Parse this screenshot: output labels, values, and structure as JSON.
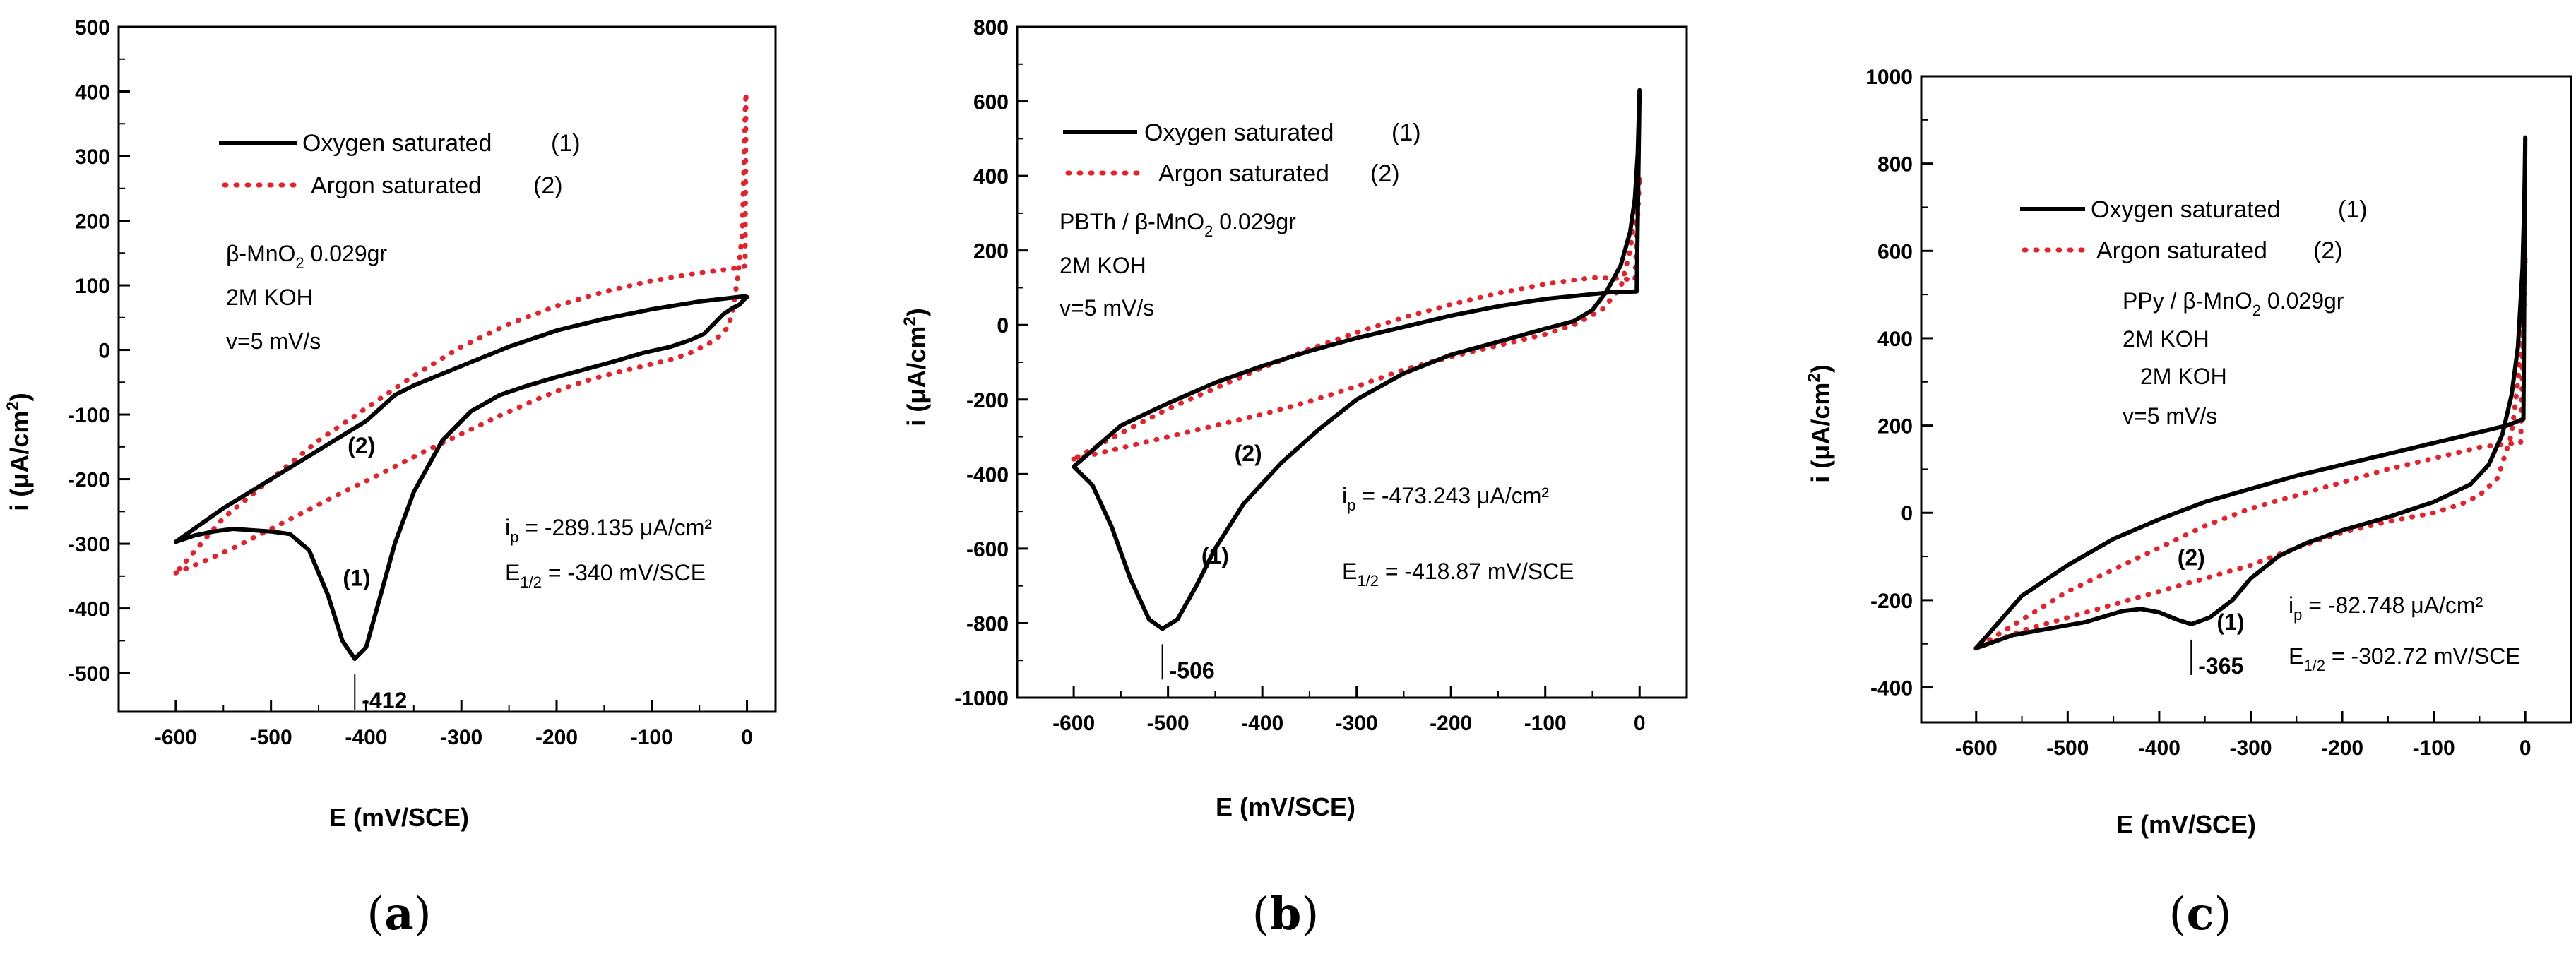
{
  "chart_data": [
    {
      "type": "line",
      "panel_label": "a",
      "xlabel": "E (mV/SCE)",
      "ylabel_pre": "i  (",
      "ylabel_mu": "μ",
      "ylabel_unit": "A/cm",
      "ylabel_sup": "2",
      "ylabel_post": ")",
      "xlim": [
        -660,
        30
      ],
      "ylim": [
        -560,
        500
      ],
      "xticks": [
        -600,
        -500,
        -400,
        -300,
        -200,
        -100,
        0
      ],
      "yticks": [
        -500,
        -400,
        -300,
        -200,
        -100,
        0,
        100,
        200,
        300,
        400,
        500
      ],
      "legend": [
        {
          "label": "Oxygen saturated",
          "tag": "(1)",
          "style": "solid"
        },
        {
          "label": "Argon saturated",
          "tag": "(2)",
          "style": "dotted"
        }
      ],
      "sample_text": {
        "pre": "β-MnO",
        "sub": "2",
        "post": " 0.029gr"
      },
      "electrolyte": "2M KOH",
      "scan_rate": "v=5 mV/s",
      "ip_text": {
        "pre": "i",
        "sub": "p",
        "post": " = -289.135 μA/cm²"
      },
      "e12_text": {
        "pre": "E",
        "sub": "1/2",
        "post": " = -340 mV/SCE"
      },
      "peak_label": "-412",
      "peak": {
        "x": -412,
        "y": -478
      },
      "series": [
        {
          "name": "Oxygen saturated (1)",
          "color": "#000000",
          "style": "solid",
          "x": [
            -600,
            -580,
            -560,
            -540,
            -520,
            -500,
            -480,
            -460,
            -440,
            -425,
            -412,
            -400,
            -385,
            -370,
            -350,
            -320,
            -290,
            -260,
            -230,
            -200,
            -170,
            -140,
            -110,
            -80,
            -60,
            -45,
            -35,
            -25,
            -15,
            -8,
            -3,
            0,
            -3,
            -20,
            -50,
            -100,
            -150,
            -200,
            -250,
            -300,
            -350,
            -370,
            -400,
            -450,
            -500,
            -550,
            -600
          ],
          "y": [
            -297,
            -287,
            -281,
            -277,
            -279,
            -281,
            -285,
            -310,
            -380,
            -450,
            -478,
            -460,
            -380,
            -300,
            -220,
            -140,
            -95,
            -70,
            -55,
            -42,
            -30,
            -18,
            -5,
            5,
            15,
            25,
            40,
            55,
            65,
            70,
            78,
            82,
            83,
            80,
            75,
            63,
            48,
            30,
            5,
            -25,
            -55,
            -70,
            -110,
            -155,
            -200,
            -245,
            -297
          ]
        },
        {
          "name": "Argon saturated (2)",
          "color": "#e8202a",
          "style": "dotted",
          "x": [
            -600,
            -580,
            -560,
            -540,
            -520,
            -500,
            -480,
            -460,
            -440,
            -420,
            -400,
            -380,
            -360,
            -340,
            -320,
            -300,
            -280,
            -260,
            -240,
            -220,
            -200,
            -180,
            -160,
            -140,
            -120,
            -100,
            -80,
            -60,
            -40,
            -30,
            -20,
            -15,
            -10,
            -5,
            -3,
            -2,
            -1,
            -2,
            -5,
            -10,
            -20,
            -40,
            -60,
            -100,
            -150,
            -200,
            -250,
            -300,
            -350,
            -400,
            -450,
            -500,
            -550,
            -600
          ],
          "y": [
            -345,
            -333,
            -320,
            -307,
            -292,
            -277,
            -262,
            -247,
            -232,
            -217,
            -203,
            -188,
            -173,
            -158,
            -144,
            -130,
            -116,
            -102,
            -89,
            -76,
            -64,
            -53,
            -44,
            -36,
            -29,
            -22,
            -15,
            -5,
            10,
            20,
            35,
            60,
            110,
            180,
            300,
            370,
            398,
            130,
            128,
            127,
            125,
            121,
            117,
            107,
            90,
            68,
            40,
            5,
            -40,
            -90,
            -140,
            -200,
            -260,
            -345
          ]
        }
      ],
      "curve_labels": [
        {
          "text": "(1)",
          "x": -410,
          "y": -365
        },
        {
          "text": "(2)",
          "x": -405,
          "y": -160
        }
      ]
    },
    {
      "type": "line",
      "panel_label": "b",
      "xlabel": "E (mV/SCE)",
      "ylabel_pre": "i  (",
      "ylabel_mu": "μ",
      "ylabel_unit": "A/cm",
      "ylabel_sup": "2",
      "ylabel_post": ")",
      "xlim": [
        -660,
        50
      ],
      "ylim": [
        -1000,
        800
      ],
      "xticks": [
        -600,
        -500,
        -400,
        -300,
        -200,
        -100,
        0
      ],
      "yticks": [
        -1000,
        -800,
        -600,
        -400,
        -200,
        0,
        200,
        400,
        600,
        800
      ],
      "legend": [
        {
          "label": "Oxygen saturated",
          "tag": "(1)",
          "style": "solid"
        },
        {
          "label": "Argon saturated",
          "tag": "(2)",
          "style": "dotted"
        }
      ],
      "sample_text": {
        "pre": "PBTh / β-MnO",
        "sub": "2",
        "post": "  0.029gr"
      },
      "electrolyte": "2M KOH",
      "scan_rate": "v=5 mV/s",
      "ip_text": {
        "pre": "i",
        "sub": "p",
        "post": " = -473.243 μA/cm²"
      },
      "e12_text": {
        "pre": "E",
        "sub": "1/2",
        "post": " = -418.87 mV/SCE"
      },
      "peak_label": "-506",
      "peak": {
        "x": -506,
        "y": -815
      },
      "series": [
        {
          "name": "Oxygen saturated (1)",
          "color": "#000000",
          "style": "solid",
          "x": [
            -600,
            -580,
            -560,
            -540,
            -520,
            -506,
            -490,
            -470,
            -450,
            -420,
            -380,
            -340,
            -300,
            -250,
            -200,
            -150,
            -100,
            -70,
            -50,
            -35,
            -20,
            -10,
            -5,
            -2,
            0,
            -3,
            -30,
            -100,
            -150,
            -200,
            -250,
            -300,
            -350,
            -400,
            -450,
            -500,
            -550,
            -600
          ],
          "y": [
            -380,
            -430,
            -540,
            -680,
            -790,
            -815,
            -790,
            -700,
            -600,
            -480,
            -370,
            -280,
            -200,
            -130,
            -80,
            -45,
            -10,
            10,
            40,
            90,
            160,
            250,
            340,
            460,
            630,
            90,
            88,
            70,
            50,
            25,
            -5,
            -35,
            -70,
            -110,
            -155,
            -210,
            -270,
            -380
          ]
        },
        {
          "name": "Argon saturated (2)",
          "color": "#e8202a",
          "style": "dotted",
          "x": [
            -600,
            -550,
            -500,
            -450,
            -400,
            -350,
            -300,
            -250,
            -200,
            -150,
            -100,
            -70,
            -40,
            -20,
            -10,
            -3,
            0,
            -5,
            -20,
            -50,
            -100,
            -150,
            -200,
            -250,
            -300,
            -350,
            -400,
            -450,
            -500,
            -550,
            -600
          ],
          "y": [
            -360,
            -330,
            -300,
            -270,
            -240,
            -205,
            -165,
            -120,
            -85,
            -55,
            -25,
            0,
            40,
            100,
            200,
            330,
            400,
            120,
            125,
            127,
            110,
            85,
            55,
            20,
            -20,
            -65,
            -115,
            -170,
            -225,
            -290,
            -360
          ]
        }
      ],
      "curve_labels": [
        {
          "text": "(1)",
          "x": -450,
          "y": -640
        },
        {
          "text": "(2)",
          "x": -415,
          "y": -365
        }
      ]
    },
    {
      "type": "line",
      "panel_label": "c",
      "xlabel": "E (mV/SCE)",
      "ylabel_pre": "i  (",
      "ylabel_mu": "μ",
      "ylabel_unit": "A/cm",
      "ylabel_sup": "2",
      "ylabel_post": ")",
      "xlim": [
        -660,
        50
      ],
      "ylim": [
        -480,
        1000
      ],
      "xticks": [
        -600,
        -500,
        -400,
        -300,
        -200,
        -100,
        0
      ],
      "yticks": [
        -400,
        -200,
        0,
        200,
        400,
        600,
        800,
        1000
      ],
      "legend": [
        {
          "label": "Oxygen saturated",
          "tag": "(1)",
          "style": "solid"
        },
        {
          "label": "Argon saturated",
          "tag": "(2)",
          "style": "dotted"
        }
      ],
      "sample_text": {
        "pre": "PPy / β-MnO",
        "sub": "2",
        "post": "  0.029gr"
      },
      "electrolyte": "2M KOH",
      "electrolyte2": "2M KOH",
      "scan_rate": "v=5 mV/s",
      "ip_text": {
        "pre": "i",
        "sub": "p",
        "post": " = -82.748 μA/cm²"
      },
      "e12_text": {
        "pre": "E",
        "sub": "1/2",
        "post": " = -302.72 mV/SCE"
      },
      "peak_label": "-365",
      "peak": {
        "x": -365,
        "y": -255
      },
      "series": [
        {
          "name": "Oxygen saturated (1)",
          "color": "#000000",
          "style": "solid",
          "x": [
            -600,
            -560,
            -520,
            -480,
            -440,
            -420,
            -400,
            -380,
            -365,
            -345,
            -320,
            -300,
            -270,
            -240,
            -200,
            -150,
            -100,
            -60,
            -40,
            -25,
            -15,
            -8,
            -3,
            -1,
            0,
            -2,
            -20,
            -60,
            -100,
            -150,
            -200,
            -250,
            -300,
            -350,
            -400,
            -450,
            -500,
            -550,
            -600
          ],
          "y": [
            -310,
            -280,
            -265,
            -250,
            -225,
            -220,
            -228,
            -245,
            -255,
            -240,
            -200,
            -150,
            -100,
            -70,
            -40,
            -10,
            25,
            65,
            110,
            180,
            270,
            380,
            560,
            720,
            860,
            215,
            200,
            180,
            160,
            135,
            110,
            85,
            55,
            25,
            -15,
            -60,
            -120,
            -190,
            -310
          ]
        },
        {
          "name": "Argon saturated (2)",
          "color": "#e8202a",
          "style": "dotted",
          "x": [
            -600,
            -550,
            -500,
            -450,
            -400,
            -350,
            -300,
            -250,
            -200,
            -150,
            -100,
            -70,
            -50,
            -30,
            -15,
            -8,
            -3,
            0,
            -5,
            -20,
            -50,
            -100,
            -150,
            -200,
            -250,
            -300,
            -350,
            -400,
            -450,
            -500,
            -550,
            -600
          ],
          "y": [
            -310,
            -270,
            -240,
            -210,
            -180,
            -150,
            -120,
            -80,
            -45,
            -20,
            0,
            20,
            40,
            80,
            180,
            300,
            450,
            590,
            160,
            158,
            150,
            125,
            100,
            70,
            40,
            10,
            -30,
            -80,
            -130,
            -180,
            -245,
            -310
          ]
        }
      ],
      "curve_labels": [
        {
          "text": "(1)",
          "x": -322,
          "y": -268
        },
        {
          "text": "(2)",
          "x": -365,
          "y": -120
        }
      ]
    }
  ]
}
